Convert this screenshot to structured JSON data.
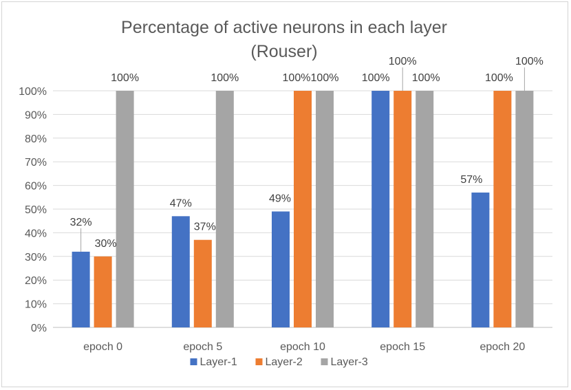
{
  "chart_data": {
    "type": "bar",
    "title_line1": "Percentage of active neurons in each layer",
    "title_line2": "(Rouser)",
    "xlabel": "",
    "ylabel": "",
    "ylim": [
      0,
      100
    ],
    "ytick_step": 10,
    "grid": true,
    "legend_position": "bottom",
    "categories": [
      "epoch 0",
      "epoch 5",
      "epoch 10",
      "epoch 15",
      "epoch 20"
    ],
    "series": [
      {
        "name": "Layer-1",
        "color": "#4472C4",
        "values": [
          32,
          47,
          49,
          100,
          57
        ]
      },
      {
        "name": "Layer-2",
        "color": "#ED7D31",
        "values": [
          30,
          37,
          100,
          100,
          100
        ]
      },
      {
        "name": "Layer-3",
        "color": "#A5A5A5",
        "values": [
          100,
          100,
          100,
          100,
          100
        ]
      }
    ],
    "data_labels": [
      [
        "32%",
        "47%",
        "49%",
        "100%",
        "57%"
      ],
      [
        "30%",
        "37%",
        "100%",
        "100%",
        "100%"
      ],
      [
        "100%",
        "100%",
        "100%",
        "100%",
        "100%"
      ]
    ],
    "ytick_labels": [
      "0%",
      "10%",
      "20%",
      "30%",
      "40%",
      "50%",
      "60%",
      "70%",
      "80%",
      "90%",
      "100%"
    ]
  }
}
